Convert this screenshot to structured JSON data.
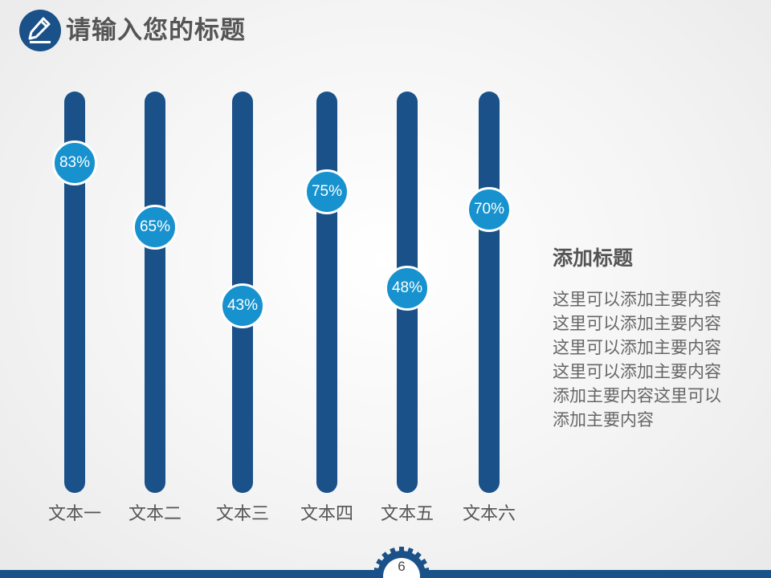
{
  "header": {
    "title": "请输入您的标题",
    "icon": "pencil-icon"
  },
  "chart_data": {
    "type": "bar",
    "title": "",
    "categories": [
      "文本一",
      "文本二",
      "文本三",
      "文本四",
      "文本五",
      "文本六"
    ],
    "values": [
      83,
      65,
      43,
      75,
      48,
      70
    ],
    "labels": [
      "83%",
      "65%",
      "43%",
      "75%",
      "48%",
      "70%"
    ],
    "ylim": [
      0,
      100
    ],
    "xlabel": "",
    "ylabel": "",
    "style": "slider-track with percentage knob",
    "colors": {
      "track": "#1a5189",
      "knob": "#1792ce",
      "knob_text": "#ffffff"
    }
  },
  "side": {
    "title": "添加标题",
    "body": "这里可以添加主要内容这里可以添加主要内容这里可以添加主要内容这里可以添加主要内容添加主要内容这里可以添加主要内容"
  },
  "footer": {
    "page_number": "6"
  }
}
